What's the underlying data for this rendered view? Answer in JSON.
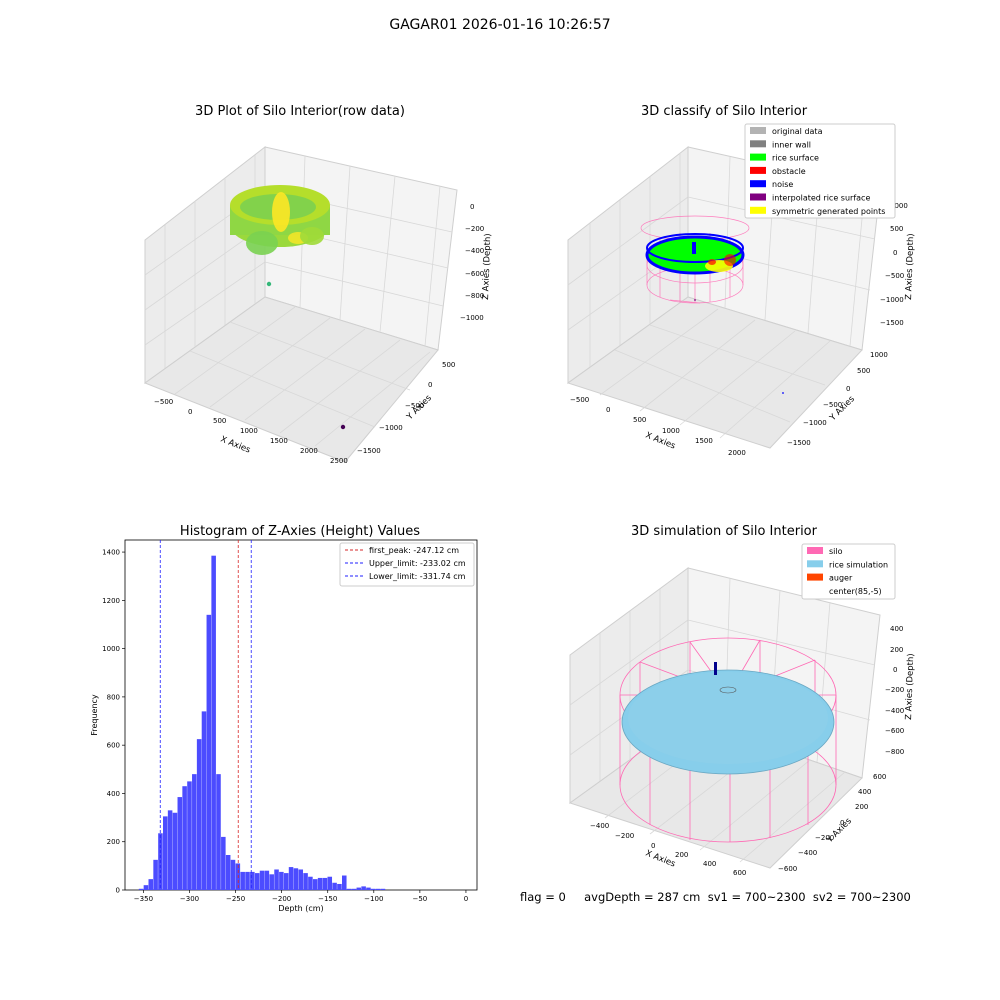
{
  "suptitle": "GAGAR01 2026-01-16 10:26:57",
  "footer": "flag = 0     avgDepth = 287 cm  sv1 = 700~2300  sv2 = 700~2300",
  "colors": {
    "histogram_bar": "#4c4cff",
    "first_peak": "#d62728",
    "limits": "#1f1fff",
    "pane_fill": "#f2f2f2",
    "grid": "#d8d8d8"
  },
  "chart_data": [
    {
      "type": "scatter",
      "title": "3D Plot of Silo Interior(row data)",
      "projection": "3d",
      "xlabel": "X Axies",
      "ylabel": "Y Axies",
      "zlabel": "Z Axies (Depth)",
      "xticks": [
        "−500",
        "0",
        "500",
        "1000",
        "1500",
        "2000",
        "2500"
      ],
      "yticks": [
        "−1500",
        "−1000",
        "−500",
        "0",
        "500"
      ],
      "zticks": [
        "0",
        "−200",
        "−400",
        "−600",
        "−800",
        "−1000"
      ],
      "xlim": [
        -600,
        2600
      ],
      "ylim": [
        -1600,
        700
      ],
      "zlim": [
        -1100,
        50
      ],
      "colormap": "viridis",
      "outliers": [
        {
          "x": 60,
          "y": -200,
          "z": -620
        },
        {
          "x": 2350,
          "y": -1400,
          "z": -1050
        }
      ]
    },
    {
      "type": "scatter",
      "title": "3D classify of Silo Interior",
      "projection": "3d",
      "xlabel": "X Axies",
      "ylabel": "Y Axies",
      "zlabel": "Z Axies (Depth)",
      "xticks": [
        "−500",
        "0",
        "500",
        "1000",
        "1500",
        "2000"
      ],
      "yticks": [
        "−1500",
        "−1000",
        "−500",
        "0",
        "500",
        "1000"
      ],
      "zticks": [
        "1000",
        "500",
        "0",
        "−500",
        "−1000",
        "−1500"
      ],
      "legend_position": "upper right",
      "legend": [
        {
          "label": "original data",
          "color": "#b3b3b3"
        },
        {
          "label": "inner wall",
          "color": "#808080"
        },
        {
          "label": "rice surface",
          "color": "#00ff00"
        },
        {
          "label": "obstacle",
          "color": "#ff0000"
        },
        {
          "label": "noise",
          "color": "#0000ff"
        },
        {
          "label": "interpolated rice surface",
          "color": "#800080"
        },
        {
          "label": "symmetric generated points",
          "color": "#ffff00"
        }
      ]
    },
    {
      "type": "bar",
      "title": "Histogram of Z-Axies (Height) Values",
      "xlabel": "Depth (cm)",
      "ylabel": "Frequency",
      "xlim": [
        -370,
        12
      ],
      "ylim": [
        0,
        1450
      ],
      "xticks": [
        -350,
        -300,
        -250,
        -200,
        -150,
        -100,
        -50,
        0
      ],
      "yticks": [
        0,
        200,
        400,
        600,
        800,
        1000,
        1200,
        1400
      ],
      "xtick_labels": [
        "−350",
        "−300",
        "−250",
        "−200",
        "−150",
        "−100",
        "−50",
        "0"
      ],
      "ytick_labels": [
        "0",
        "200",
        "400",
        "600",
        "800",
        "1000",
        "1200",
        "1400"
      ],
      "bin_start": -355,
      "bin_width": 5.25,
      "values": [
        5,
        20,
        45,
        125,
        235,
        305,
        330,
        320,
        385,
        430,
        450,
        480,
        625,
        740,
        1140,
        1385,
        480,
        220,
        145,
        125,
        110,
        75,
        75,
        75,
        70,
        80,
        80,
        65,
        85,
        75,
        70,
        95,
        90,
        85,
        70,
        55,
        45,
        50,
        50,
        55,
        30,
        25,
        60,
        5,
        5,
        10,
        15,
        10,
        5,
        5,
        5
      ],
      "lines": [
        {
          "label": "first_peak: -247.12 cm",
          "x": -247.12,
          "color": "#d62728"
        },
        {
          "label": "Upper_limit: -233.02 cm",
          "x": -233.02,
          "color": "#1f1fff"
        },
        {
          "label": "Lower_limit: -331.74 cm",
          "x": -331.74,
          "color": "#1f1fff"
        }
      ],
      "legend_position": "upper right"
    },
    {
      "type": "surface",
      "title": "3D simulation of Silo Interior",
      "projection": "3d",
      "xlabel": "X Axies",
      "ylabel": "Y Axies",
      "zlabel": "Z Axies (Depth)",
      "xticks": [
        "−400",
        "−200",
        "0",
        "200",
        "400",
        "600"
      ],
      "yticks": [
        "−600",
        "−400",
        "−200",
        "0",
        "200",
        "400",
        "600"
      ],
      "zticks": [
        "400",
        "200",
        "0",
        "−200",
        "−400",
        "−600",
        "−800"
      ],
      "legend_position": "upper right",
      "legend": [
        {
          "label": "silo",
          "color": "#ff69b4"
        },
        {
          "label": "rice simulation",
          "color": "#87ceeb"
        },
        {
          "label": "auger",
          "color": "#ff4500"
        },
        {
          "label": "center(85,-5)",
          "color": "none"
        }
      ]
    }
  ]
}
